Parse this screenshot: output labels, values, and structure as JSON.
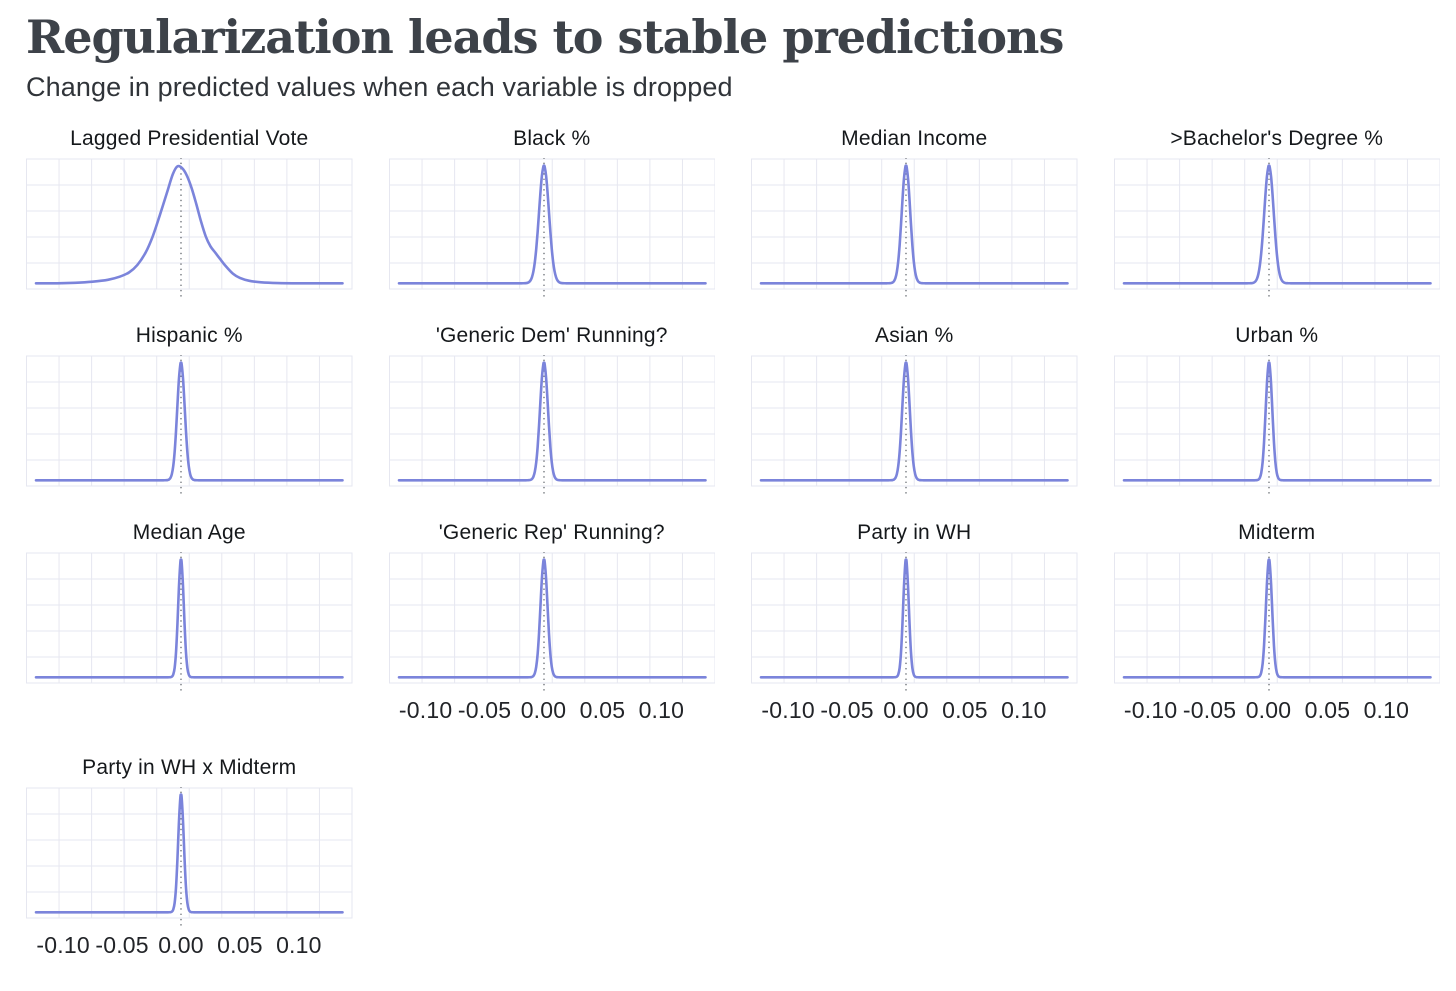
{
  "header": {
    "title": "Regularization leads to stable predictions",
    "subtitle": "Change in predicted values when each variable is dropped"
  },
  "style": {
    "background": "#ffffff",
    "curve_color": "#7b84db",
    "grid_color": "#e6e7f0",
    "dotted_line_color": "#6b7076",
    "title_color": "#3d4249",
    "subtitle_color": "#303439",
    "panel_title_color": "#15181b",
    "tick_label_color": "#222428"
  },
  "chart_data": {
    "type": "line",
    "subtype": "density-small-multiples",
    "title": "Regularization leads to stable predictions",
    "subtitle": "Change in predicted values when each variable is dropped",
    "layout": {
      "columns": 4,
      "panel_count": 13,
      "grid": "on",
      "legend": "none",
      "reference_line": "dotted vertical line at x = 0 in every panel"
    },
    "axis": {
      "x_range": [
        -0.123,
        0.137
      ],
      "x_gridline_count": 11,
      "y_gridline_count": 6,
      "y_axis": "density, unlabeled, free scale per panel",
      "x_ticks": [
        {
          "value": -0.1,
          "label": "-0.10"
        },
        {
          "value": -0.05,
          "label": "-0.05"
        },
        {
          "value": 0.0,
          "label": "0.00"
        },
        {
          "value": 0.05,
          "label": "0.05"
        },
        {
          "value": 0.1,
          "label": "0.10"
        }
      ]
    },
    "panels": [
      {
        "label": "Lagged Presidential Vote",
        "show_x_axis": false,
        "curve": {
          "type": "points",
          "points": [
            [
              -0.123,
              0.022
            ],
            [
              -0.105,
              0.022
            ],
            [
              -0.09,
              0.026
            ],
            [
              -0.075,
              0.035
            ],
            [
              -0.062,
              0.05
            ],
            [
              -0.052,
              0.075
            ],
            [
              -0.044,
              0.11
            ],
            [
              -0.037,
              0.17
            ],
            [
              -0.03,
              0.27
            ],
            [
              -0.024,
              0.4
            ],
            [
              -0.018,
              0.57
            ],
            [
              -0.012,
              0.75
            ],
            [
              -0.007,
              0.9
            ],
            [
              -0.003,
              0.965
            ],
            [
              0.001,
              0.95
            ],
            [
              0.005,
              0.89
            ],
            [
              0.009,
              0.79
            ],
            [
              0.013,
              0.66
            ],
            [
              0.017,
              0.52
            ],
            [
              0.021,
              0.4
            ],
            [
              0.025,
              0.32
            ],
            [
              0.029,
              0.27
            ],
            [
              0.033,
              0.22
            ],
            [
              0.038,
              0.16
            ],
            [
              0.044,
              0.1
            ],
            [
              0.05,
              0.065
            ],
            [
              0.058,
              0.042
            ],
            [
              0.068,
              0.03
            ],
            [
              0.082,
              0.024
            ],
            [
              0.1,
              0.022
            ],
            [
              0.137,
              0.022
            ]
          ]
        }
      },
      {
        "label": "Black %",
        "show_x_axis": false,
        "curve": {
          "type": "spike",
          "center": 0,
          "sigma": 0.0042,
          "peak": 0.97,
          "baseline": 0.022
        }
      },
      {
        "label": "Median Income",
        "show_x_axis": false,
        "curve": {
          "type": "spike",
          "center": 0,
          "sigma": 0.0036,
          "peak": 0.97,
          "baseline": 0.022
        }
      },
      {
        "label": ">Bachelor's Degree %",
        "show_x_axis": false,
        "curve": {
          "type": "spike",
          "center": 0,
          "sigma": 0.004,
          "peak": 0.97,
          "baseline": 0.022
        }
      },
      {
        "label": "Hispanic %",
        "show_x_axis": false,
        "curve": {
          "type": "spike",
          "center": 0,
          "sigma": 0.0032,
          "peak": 0.97,
          "baseline": 0.022
        }
      },
      {
        "label": "'Generic Dem' Running?",
        "show_x_axis": false,
        "curve": {
          "type": "spike",
          "center": 0,
          "sigma": 0.0034,
          "peak": 0.97,
          "baseline": 0.022
        }
      },
      {
        "label": "Asian %",
        "show_x_axis": false,
        "curve": {
          "type": "spike",
          "center": 0,
          "sigma": 0.0032,
          "peak": 0.97,
          "baseline": 0.022
        }
      },
      {
        "label": "Urban %",
        "show_x_axis": false,
        "curve": {
          "type": "spike",
          "center": 0,
          "sigma": 0.0028,
          "peak": 0.97,
          "baseline": 0.022
        }
      },
      {
        "label": "Median Age",
        "show_x_axis": false,
        "curve": {
          "type": "spike",
          "center": 0,
          "sigma": 0.0024,
          "peak": 0.97,
          "baseline": 0.022
        }
      },
      {
        "label": "'Generic Rep' Running?",
        "show_x_axis": true,
        "curve": {
          "type": "spike",
          "center": 0,
          "sigma": 0.003,
          "peak": 0.97,
          "baseline": 0.022
        }
      },
      {
        "label": "Party in WH",
        "show_x_axis": true,
        "curve": {
          "type": "spike",
          "center": 0,
          "sigma": 0.0024,
          "peak": 0.97,
          "baseline": 0.022
        }
      },
      {
        "label": "Midterm",
        "show_x_axis": true,
        "curve": {
          "type": "spike",
          "center": 0,
          "sigma": 0.0026,
          "peak": 0.97,
          "baseline": 0.022
        }
      },
      {
        "label": "Party in WH x Midterm",
        "show_x_axis": true,
        "curve": {
          "type": "spike",
          "center": 0,
          "sigma": 0.0024,
          "peak": 0.97,
          "baseline": 0.022
        }
      }
    ]
  }
}
